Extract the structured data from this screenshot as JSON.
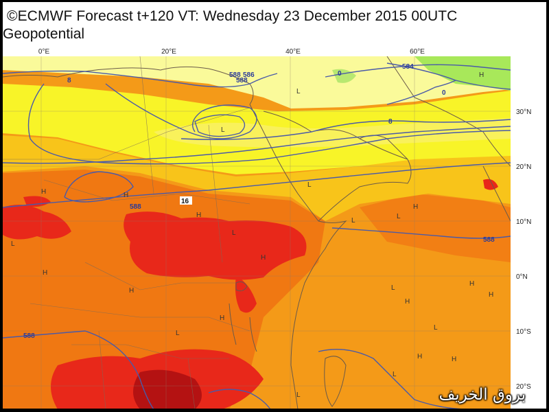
{
  "header": {
    "title": "©ECMWF Forecast t+120 VT: Wednesday 23 December 2015 00UTC",
    "subtitle": "Geopotential"
  },
  "axes": {
    "longitudes": [
      {
        "label": "0°E",
        "lon": 0
      },
      {
        "label": "20°E",
        "lon": 20
      },
      {
        "label": "40°E",
        "lon": 40
      },
      {
        "label": "60°E",
        "lon": 60
      }
    ],
    "latitudes": [
      {
        "label": "30°N",
        "lat": 30
      },
      {
        "label": "20°N",
        "lat": 20
      },
      {
        "label": "10°N",
        "lat": 10
      },
      {
        "label": "0°N",
        "lat": 0
      },
      {
        "label": "10°S",
        "lat": -10
      },
      {
        "label": "20°S",
        "lat": -20
      }
    ]
  },
  "contour_labels": [
    "584",
    "588",
    "586",
    "588",
    "588",
    "588",
    "588",
    "8",
    "0",
    "0",
    "8",
    "16"
  ],
  "pressure_centers": {
    "high_symbol": "H",
    "low_symbol": "L"
  },
  "colors": {
    "pale_yellow": "#fafa9a",
    "yellow": "#f8f428",
    "light_orange": "#f8c41a",
    "orange": "#f49a18",
    "deep_orange": "#f07812",
    "red": "#e8281a",
    "dark_red": "#b41212",
    "green": "#a8e85a",
    "contour_blue": "#4a5aa8",
    "coastline": "#6a5a4a"
  },
  "watermark": "بروق الخريف"
}
